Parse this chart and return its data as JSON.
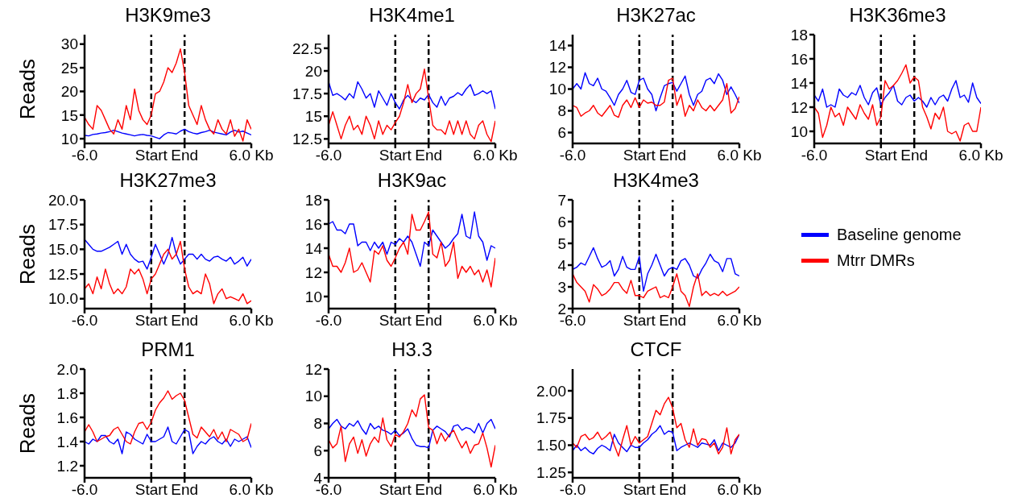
{
  "chart_data": [
    {
      "type": "line",
      "title": "H3K9me3",
      "ylabel": "Reads",
      "categories": [
        "-6.0",
        null,
        null,
        null,
        null,
        null,
        null,
        null,
        null,
        null,
        null,
        null,
        null,
        null,
        null,
        null,
        "Start",
        null,
        null,
        null,
        null,
        null,
        null,
        null,
        "End",
        null,
        null,
        null,
        null,
        null,
        null,
        null,
        null,
        null,
        null,
        null,
        null,
        null,
        null,
        null,
        "6.0 Kb"
      ],
      "ylim": [
        9,
        32
      ],
      "yticks": [
        10,
        15,
        20,
        25,
        30
      ],
      "ref_lines": [
        {
          "axis": "x",
          "value": "Start",
          "color": "#000000",
          "line_style": "dashed"
        },
        {
          "axis": "x",
          "value": "End",
          "color": "#000000",
          "line_style": "dashed"
        }
      ],
      "series": [
        {
          "color": "#0000ff",
          "values": [
            10.7,
            10.6,
            10.9,
            11,
            11.2,
            11.3,
            11.5,
            11.8,
            11.5,
            11.2,
            11,
            10.8,
            10.6,
            10.8,
            10.9,
            10.7,
            10.6,
            10.3,
            10,
            10.8,
            11.3,
            11.2,
            11,
            11.6,
            12,
            11.5,
            11.2,
            11,
            11.3,
            11.5,
            11.8,
            11.4,
            11.2,
            11,
            10.8,
            11.4,
            11.8,
            11.4,
            11.6,
            11.2,
            10.8
          ]
        },
        {
          "color": "#ff0000",
          "values": [
            14.5,
            13,
            12,
            17,
            16,
            14,
            12,
            11,
            14,
            12,
            17,
            14,
            20.5,
            16,
            14,
            13,
            15,
            19.5,
            20,
            22,
            25,
            24,
            26,
            29,
            24,
            17,
            15,
            13,
            17,
            14,
            12,
            11,
            14,
            12,
            11,
            14,
            10.5,
            12,
            9.5,
            14,
            12
          ]
        }
      ]
    },
    {
      "type": "line",
      "title": "H3K4me1",
      "categories": [
        "-6.0",
        null,
        null,
        null,
        null,
        null,
        null,
        null,
        null,
        null,
        null,
        null,
        null,
        null,
        null,
        null,
        "Start",
        null,
        null,
        null,
        null,
        null,
        null,
        null,
        "End",
        null,
        null,
        null,
        null,
        null,
        null,
        null,
        null,
        null,
        null,
        null,
        null,
        null,
        null,
        null,
        "6.0 Kb"
      ],
      "ylim": [
        12,
        24
      ],
      "yticks": [
        12.5,
        15,
        17.5,
        20,
        22.5
      ],
      "ref_lines": [
        {
          "axis": "x",
          "value": "Start",
          "color": "#000000",
          "line_style": "dashed"
        },
        {
          "axis": "x",
          "value": "End",
          "color": "#000000",
          "line_style": "dashed"
        }
      ],
      "series": [
        {
          "color": "#0000ff",
          "values": [
            18.8,
            17.3,
            17.5,
            17.2,
            16.8,
            17.5,
            17,
            18.8,
            18,
            17,
            17.5,
            16,
            17.8,
            17,
            16.2,
            17.5,
            16.5,
            15.8,
            16.8,
            17.3,
            16.8,
            16.5,
            17,
            16.8,
            17.4,
            16.5,
            16,
            17.2,
            16.2,
            17,
            17.2,
            17.6,
            17.3,
            18,
            18.5,
            17.3,
            17.5,
            17.8,
            17.5,
            17.8,
            15.8
          ]
        },
        {
          "color": "#ff0000",
          "values": [
            14,
            15.5,
            14,
            12.5,
            14,
            15,
            13.5,
            14,
            13,
            15,
            14,
            12.5,
            14.5,
            13,
            14,
            13.5,
            14.3,
            15,
            16.5,
            18.5,
            16.5,
            17.5,
            18,
            20.2,
            17,
            14,
            13.5,
            13.5,
            13,
            14.5,
            13,
            14.5,
            13,
            14.5,
            13,
            12.5,
            14,
            14.5,
            13,
            12.2,
            14.5
          ]
        }
      ]
    },
    {
      "type": "line",
      "title": "H3K27ac",
      "categories": [
        "-6.0",
        null,
        null,
        null,
        null,
        null,
        null,
        null,
        null,
        null,
        null,
        null,
        null,
        null,
        null,
        null,
        "Start",
        null,
        null,
        null,
        null,
        null,
        null,
        null,
        "End",
        null,
        null,
        null,
        null,
        null,
        null,
        null,
        null,
        null,
        null,
        null,
        null,
        null,
        null,
        null,
        "6.0 Kb"
      ],
      "ylim": [
        5,
        15
      ],
      "yticks": [
        6,
        8,
        10,
        12,
        14
      ],
      "ref_lines": [
        {
          "axis": "x",
          "value": "Start",
          "color": "#000000",
          "line_style": "dashed"
        },
        {
          "axis": "x",
          "value": "End",
          "color": "#000000",
          "line_style": "dashed"
        }
      ],
      "series": [
        {
          "color": "#0000ff",
          "values": [
            10,
            10.5,
            10,
            11.5,
            10.5,
            10.3,
            11,
            10,
            9.8,
            9.2,
            8.5,
            9.5,
            10,
            10.8,
            9.7,
            9.5,
            10.8,
            11,
            10,
            9.5,
            8,
            9.2,
            10.3,
            10.5,
            10.6,
            9.8,
            10.5,
            11.2,
            9.5,
            8.5,
            9.5,
            9.8,
            10.8,
            11,
            10.5,
            11.4,
            10.8,
            9.5,
            10.2,
            9.5,
            8.7
          ]
        },
        {
          "color": "#ff0000",
          "values": [
            8.5,
            8.3,
            7.5,
            7.8,
            8,
            8.5,
            7.8,
            7.5,
            8,
            8.5,
            7.6,
            7.4,
            8.5,
            9,
            8.3,
            9.2,
            8.3,
            9,
            8.7,
            8.8,
            8.5,
            8.5,
            8.8,
            10.8,
            11,
            8.5,
            9.5,
            7.5,
            8.5,
            8,
            9,
            8.3,
            8,
            8.5,
            8,
            8.5,
            9,
            10.5,
            7.8,
            8.2,
            9.3
          ]
        }
      ]
    },
    {
      "type": "line",
      "title": "H3K36me3",
      "categories": [
        "-6.0",
        null,
        null,
        null,
        null,
        null,
        null,
        null,
        null,
        null,
        null,
        null,
        null,
        null,
        null,
        null,
        "Start",
        null,
        null,
        null,
        null,
        null,
        null,
        null,
        "End",
        null,
        null,
        null,
        null,
        null,
        null,
        null,
        null,
        null,
        null,
        null,
        null,
        null,
        null,
        null,
        "6.0 Kb"
      ],
      "ylim": [
        9,
        18
      ],
      "yticks": [
        10,
        12,
        14,
        16,
        18
      ],
      "ref_lines": [
        {
          "axis": "x",
          "value": "Start",
          "color": "#000000",
          "line_style": "dashed"
        },
        {
          "axis": "x",
          "value": "End",
          "color": "#000000",
          "line_style": "dashed"
        }
      ],
      "series": [
        {
          "color": "#0000ff",
          "values": [
            13,
            12.5,
            13.5,
            12,
            12.2,
            12,
            13.5,
            13,
            12.8,
            13.2,
            13,
            13.8,
            12.8,
            12.2,
            13.2,
            13.6,
            12.2,
            12.8,
            13.2,
            13.8,
            12.5,
            12.2,
            12.8,
            13,
            12.5,
            12.8,
            12.5,
            12,
            12.8,
            12.2,
            12.8,
            13,
            12.5,
            13.5,
            14.2,
            12.8,
            13,
            12.4,
            14,
            12.8,
            12.3
          ]
        },
        {
          "color": "#ff0000",
          "values": [
            12,
            11.5,
            9.5,
            10.5,
            12,
            11.2,
            11.5,
            10.5,
            12,
            11.5,
            11,
            12.2,
            11.5,
            11,
            12.2,
            10.5,
            11.2,
            14.2,
            13.5,
            13.8,
            14.2,
            14.8,
            15.5,
            14,
            14.5,
            14.2,
            12,
            11.2,
            10.2,
            11.5,
            11,
            12,
            10,
            9.8,
            10,
            9.2,
            10.5,
            10.7,
            10,
            10,
            12
          ]
        }
      ]
    },
    {
      "type": "line",
      "title": "H3K27me3",
      "ylabel": "Reads",
      "categories": [
        "-6.0",
        null,
        null,
        null,
        null,
        null,
        null,
        null,
        null,
        null,
        null,
        null,
        null,
        null,
        null,
        null,
        "Start",
        null,
        null,
        null,
        null,
        null,
        null,
        null,
        "End",
        null,
        null,
        null,
        null,
        null,
        null,
        null,
        null,
        null,
        null,
        null,
        null,
        null,
        null,
        null,
        "6.0 Kb"
      ],
      "ylim": [
        9,
        20
      ],
      "yticks": [
        {
          "value": 10,
          "label": "10.0"
        },
        12.5,
        {
          "value": 15,
          "label": "15.0"
        },
        17.5,
        {
          "value": 20,
          "label": "20.0"
        }
      ],
      "ref_lines": [
        {
          "axis": "x",
          "value": "Start",
          "color": "#000000",
          "line_style": "dashed"
        },
        {
          "axis": "x",
          "value": "End",
          "color": "#000000",
          "line_style": "dashed"
        }
      ],
      "series": [
        {
          "color": "#0000ff",
          "values": [
            16,
            15.5,
            15,
            14.8,
            14.8,
            15,
            15.2,
            15.5,
            15.8,
            14.5,
            15.5,
            14.5,
            14,
            13.7,
            13.8,
            13,
            14.2,
            15.5,
            14.5,
            13.5,
            14.5,
            16.2,
            14.5,
            13.5,
            14,
            14.5,
            14.5,
            14,
            14.5,
            14,
            13.8,
            14.2,
            14.3,
            14,
            13.8,
            14.2,
            13.5,
            13.8,
            14.2,
            13.3,
            14
          ]
        },
        {
          "color": "#ff0000",
          "values": [
            11,
            11.5,
            10.5,
            12.2,
            11,
            13,
            11.5,
            10.5,
            11,
            10.5,
            11.2,
            13,
            12.5,
            13,
            12,
            10.5,
            12,
            12.5,
            13.5,
            14.5,
            15,
            14,
            14.5,
            15.8,
            13,
            11.2,
            10.5,
            10.8,
            10.5,
            12.5,
            11.5,
            9.5,
            10.5,
            11,
            10,
            10.2,
            10,
            9.8,
            10.5,
            9.5,
            9.8
          ]
        }
      ]
    },
    {
      "type": "line",
      "title": "H3K9ac",
      "categories": [
        "-6.0",
        null,
        null,
        null,
        null,
        null,
        null,
        null,
        null,
        null,
        null,
        null,
        null,
        null,
        null,
        null,
        "Start",
        null,
        null,
        null,
        null,
        null,
        null,
        null,
        "End",
        null,
        null,
        null,
        null,
        null,
        null,
        null,
        null,
        null,
        null,
        null,
        null,
        null,
        null,
        null,
        "6.0 Kb"
      ],
      "ylim": [
        9,
        18
      ],
      "yticks": [
        10,
        12,
        14,
        16,
        18
      ],
      "ref_lines": [
        {
          "axis": "x",
          "value": "Start",
          "color": "#000000",
          "line_style": "dashed"
        },
        {
          "axis": "x",
          "value": "End",
          "color": "#000000",
          "line_style": "dashed"
        }
      ],
      "series": [
        {
          "color": "#0000ff",
          "values": [
            16,
            16.2,
            15.5,
            15.5,
            15.2,
            16,
            16,
            14.2,
            14.5,
            14.5,
            13.8,
            14.5,
            14,
            14.5,
            13.5,
            14.5,
            14.3,
            14.8,
            14.5,
            15,
            14.5,
            13.5,
            12.5,
            14.5,
            14.2,
            15.5,
            15,
            14.5,
            14,
            14.3,
            14.8,
            15.2,
            16.8,
            15,
            14.8,
            17,
            15,
            14.5,
            13,
            14.2,
            14
          ]
        },
        {
          "color": "#ff0000",
          "values": [
            13.5,
            12.5,
            12.5,
            12,
            12.8,
            14,
            12,
            12.2,
            12.8,
            12,
            11.2,
            13.8,
            13.5,
            14.2,
            13,
            12.5,
            13.2,
            14,
            14.5,
            13.5,
            16.8,
            15.5,
            15.5,
            16.2,
            17,
            13.5,
            13.2,
            14.5,
            12.5,
            13,
            14.5,
            11.5,
            12.5,
            12,
            12.5,
            11.8,
            12.2,
            11.2,
            12.2,
            10.8,
            13.2
          ]
        }
      ]
    },
    {
      "type": "line",
      "title": "H3K4me3",
      "legend": "right",
      "categories": [
        "-6.0",
        null,
        null,
        null,
        null,
        null,
        null,
        null,
        null,
        null,
        null,
        null,
        null,
        null,
        null,
        null,
        "Start",
        null,
        null,
        null,
        null,
        null,
        null,
        null,
        "End",
        null,
        null,
        null,
        null,
        null,
        null,
        null,
        null,
        null,
        null,
        null,
        null,
        null,
        null,
        null,
        "6.0 Kb"
      ],
      "ylim": [
        2,
        7
      ],
      "yticks": [
        2,
        3,
        4,
        5,
        6,
        7
      ],
      "ref_lines": [
        {
          "axis": "x",
          "value": "Start",
          "color": "#000000",
          "line_style": "dashed"
        },
        {
          "axis": "x",
          "value": "End",
          "color": "#000000",
          "line_style": "dashed"
        }
      ],
      "series": [
        {
          "name": "Baseline genome",
          "color": "#0000ff",
          "values": [
            3.8,
            3.9,
            4.1,
            4,
            4.4,
            4.8,
            4.3,
            3.9,
            4,
            4.2,
            3.5,
            3.8,
            4.4,
            3.9,
            3.8,
            3.8,
            4.4,
            2.8,
            3.6,
            4,
            4.5,
            4,
            3.5,
            3.8,
            3.9,
            3.8,
            4.2,
            4.3,
            4,
            3.5,
            3.4,
            3.8,
            4.1,
            4.5,
            4.2,
            4.1,
            3.7,
            4.3,
            4.3,
            3.6,
            3.5
          ]
        },
        {
          "name": "Mtrr DMRs",
          "color": "#ff0000",
          "values": [
            3.6,
            3.2,
            3,
            2.8,
            2.3,
            3.1,
            2.9,
            2.6,
            2.7,
            2.9,
            3.2,
            3.2,
            2.9,
            2.7,
            3.3,
            2.6,
            2.6,
            2.5,
            2.8,
            2.9,
            3,
            2.5,
            2.6,
            2.5,
            3,
            3.6,
            2.8,
            2.6,
            2.1,
            3,
            3.6,
            2.6,
            2.8,
            2.6,
            2.7,
            2.6,
            2.8,
            2.6,
            2.7,
            2.8,
            3
          ]
        }
      ]
    },
    {
      "type": "line",
      "title": "PRM1",
      "ylabel": "Reads",
      "categories": [
        "-6.0",
        null,
        null,
        null,
        null,
        null,
        null,
        null,
        null,
        null,
        null,
        null,
        null,
        null,
        null,
        null,
        "Start",
        null,
        null,
        null,
        null,
        null,
        null,
        null,
        "End",
        null,
        null,
        null,
        null,
        null,
        null,
        null,
        null,
        null,
        null,
        null,
        null,
        null,
        null,
        null,
        "6.0 Kb"
      ],
      "ylim": [
        1.1,
        2
      ],
      "yticks": [
        1.2,
        1.4,
        1.6,
        1.8,
        {
          "value": 2,
          "label": "2.0"
        }
      ],
      "ref_lines": [
        {
          "axis": "x",
          "value": "Start",
          "color": "#000000",
          "line_style": "dashed"
        },
        {
          "axis": "x",
          "value": "End",
          "color": "#000000",
          "line_style": "dashed"
        }
      ],
      "series": [
        {
          "color": "#0000ff",
          "values": [
            1.4,
            1.38,
            1.42,
            1.4,
            1.45,
            1.45,
            1.4,
            1.38,
            1.42,
            1.3,
            1.48,
            1.46,
            1.42,
            1.4,
            1.38,
            1.46,
            1.4,
            1.4,
            1.42,
            1.44,
            1.52,
            1.4,
            1.38,
            1.44,
            1.5,
            1.48,
            1.3,
            1.36,
            1.4,
            1.38,
            1.42,
            1.44,
            1.4,
            1.38,
            1.42,
            1.36,
            1.42,
            1.4,
            1.42,
            1.44,
            1.35
          ]
        },
        {
          "color": "#ff0000",
          "values": [
            1.48,
            1.54,
            1.48,
            1.4,
            1.42,
            1.44,
            1.45,
            1.5,
            1.52,
            1.46,
            1.4,
            1.38,
            1.48,
            1.55,
            1.56,
            1.5,
            1.56,
            1.66,
            1.72,
            1.76,
            1.82,
            1.75,
            1.78,
            1.8,
            1.74,
            1.6,
            1.46,
            1.43,
            1.52,
            1.48,
            1.44,
            1.5,
            1.42,
            1.48,
            1.4,
            1.5,
            1.48,
            1.46,
            1.4,
            1.42,
            1.55
          ]
        }
      ]
    },
    {
      "type": "line",
      "title": "H3.3",
      "categories": [
        "-6.0",
        null,
        null,
        null,
        null,
        null,
        null,
        null,
        null,
        null,
        null,
        null,
        null,
        null,
        null,
        null,
        "Start",
        null,
        null,
        null,
        null,
        null,
        null,
        null,
        "End",
        null,
        null,
        null,
        null,
        null,
        null,
        null,
        null,
        null,
        null,
        null,
        null,
        null,
        null,
        null,
        "6.0 Kb"
      ],
      "ylim": [
        4,
        12
      ],
      "yticks": [
        4,
        6,
        8,
        10,
        12
      ],
      "ref_lines": [
        {
          "axis": "x",
          "value": "Start",
          "color": "#000000",
          "line_style": "dashed"
        },
        {
          "axis": "x",
          "value": "End",
          "color": "#000000",
          "line_style": "dashed"
        }
      ],
      "series": [
        {
          "color": "#0000ff",
          "values": [
            7.6,
            8,
            8.3,
            7.8,
            7.6,
            8,
            7.8,
            8.2,
            7.6,
            7.2,
            8,
            7.6,
            7.8,
            7.5,
            7.4,
            7.2,
            7.5,
            7.1,
            7.3,
            7.6,
            6.9,
            6.4,
            6.3,
            6.3,
            6.2,
            7.5,
            7.8,
            7.6,
            7.4,
            7,
            7.8,
            7.9,
            7.5,
            7.7,
            7.6,
            7.3,
            8,
            7.3,
            8,
            8.3,
            7.6
          ]
        },
        {
          "color": "#ff0000",
          "values": [
            6.8,
            6.2,
            6.5,
            7.8,
            5.2,
            6.5,
            7,
            5.8,
            6.8,
            5.6,
            6.5,
            7,
            6.6,
            8.4,
            6.8,
            6.3,
            7.2,
            7,
            7.4,
            8,
            9,
            8.5,
            9.8,
            10.1,
            7.7,
            7.5,
            6.5,
            7.3,
            6.7,
            7.2,
            7.5,
            6.8,
            6.2,
            6.7,
            5.8,
            6.4,
            6.5,
            7.3,
            6.2,
            4.8,
            6.4
          ]
        }
      ]
    },
    {
      "type": "line",
      "title": "CTCF",
      "categories": [
        "-6.0",
        null,
        null,
        null,
        null,
        null,
        null,
        null,
        null,
        null,
        null,
        null,
        null,
        null,
        null,
        null,
        "Start",
        null,
        null,
        null,
        null,
        null,
        null,
        null,
        "End",
        null,
        null,
        null,
        null,
        null,
        null,
        null,
        null,
        null,
        null,
        null,
        null,
        null,
        null,
        null,
        "6.0 Kb"
      ],
      "ylim": [
        1.2,
        2.2
      ],
      "yticks": [
        1.25,
        {
          "value": 1.5,
          "label": "1.50"
        },
        1.75,
        {
          "value": 2,
          "label": "2.00"
        }
      ],
      "ref_lines": [
        {
          "axis": "x",
          "value": "Start",
          "color": "#000000",
          "line_style": "dashed"
        },
        {
          "axis": "x",
          "value": "End",
          "color": "#000000",
          "line_style": "dashed"
        }
      ],
      "series": [
        {
          "color": "#0000ff",
          "values": [
            1.45,
            1.5,
            1.45,
            1.48,
            1.44,
            1.42,
            1.47,
            1.5,
            1.48,
            1.45,
            1.6,
            1.52,
            1.48,
            1.44,
            1.5,
            1.48,
            1.48,
            1.52,
            1.55,
            1.6,
            1.63,
            1.68,
            1.6,
            1.63,
            1.62,
            1.45,
            1.48,
            1.5,
            1.52,
            1.5,
            1.48,
            1.52,
            1.51,
            1.5,
            1.55,
            1.45,
            1.52,
            1.5,
            1.48,
            1.52,
            1.6
          ]
        },
        {
          "color": "#ff0000",
          "values": [
            1.52,
            1.48,
            1.58,
            1.6,
            1.55,
            1.57,
            1.62,
            1.55,
            1.58,
            1.62,
            1.5,
            1.4,
            1.55,
            1.68,
            1.5,
            1.58,
            1.52,
            1.55,
            1.58,
            1.7,
            1.82,
            1.78,
            1.88,
            1.94,
            1.84,
            1.66,
            1.7,
            1.55,
            1.48,
            1.65,
            1.5,
            1.56,
            1.55,
            1.48,
            1.52,
            1.42,
            1.48,
            1.66,
            1.42,
            1.55,
            1.6
          ]
        }
      ]
    }
  ]
}
